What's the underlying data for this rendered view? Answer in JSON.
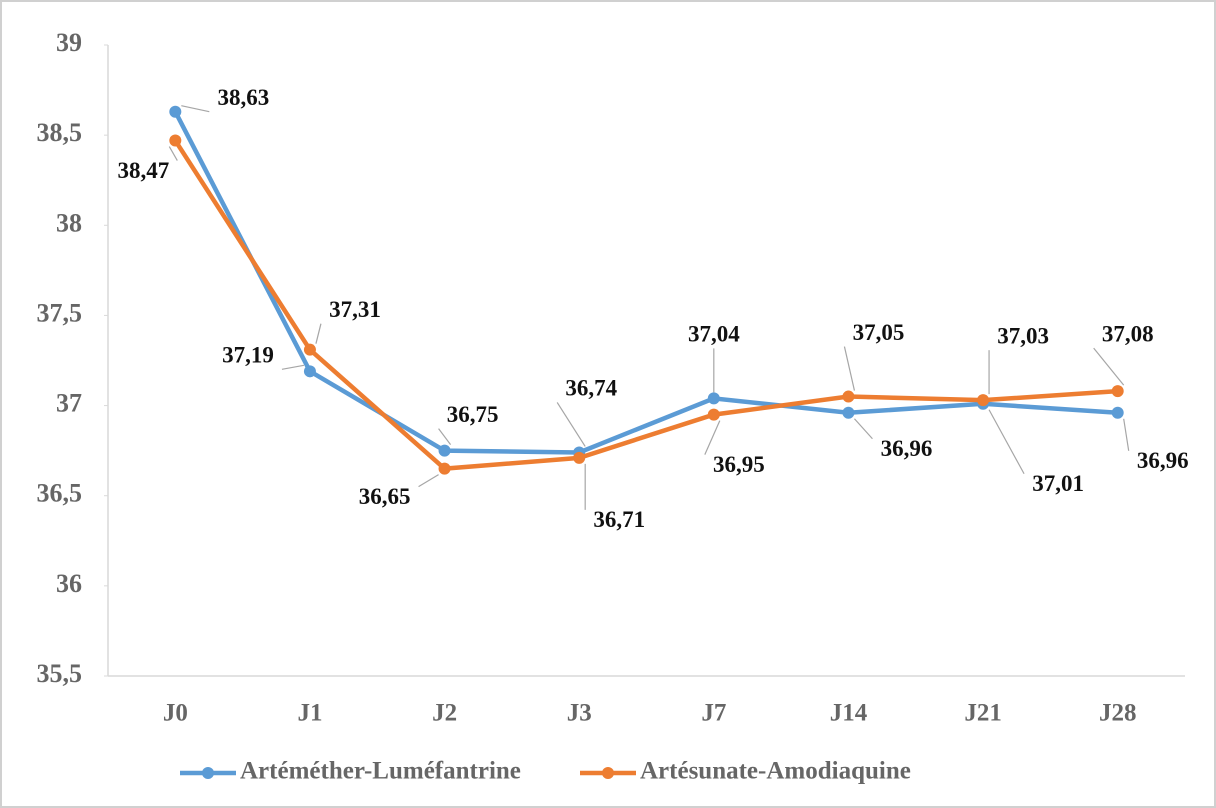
{
  "chart_data": {
    "type": "line",
    "categories": [
      "J0",
      "J1",
      "J2",
      "J3",
      "J7",
      "J14",
      "J21",
      "J28"
    ],
    "series": [
      {
        "name": "Artéméther-Luméfantrine",
        "color": "#5b9bd5",
        "values": [
          38.63,
          37.19,
          36.75,
          36.74,
          37.04,
          36.96,
          37.01,
          36.96
        ],
        "value_labels": [
          "38,63",
          "37,19",
          "36,75",
          "36,74",
          "37,04",
          "36,96",
          "37,01",
          "36,96"
        ]
      },
      {
        "name": "Artésunate-Amodiaquine",
        "color": "#ed7d31",
        "values": [
          38.47,
          37.31,
          36.65,
          36.71,
          36.95,
          37.05,
          37.03,
          37.08
        ],
        "value_labels": [
          "38,47",
          "37,31",
          "36,65",
          "36,71",
          "36,95",
          "37,05",
          "37,03",
          "37,08"
        ]
      }
    ],
    "ylim": [
      35.5,
      39
    ],
    "yticks": [
      {
        "value": 35.5,
        "label": "35,5"
      },
      36,
      {
        "value": 36.5,
        "label": "36,5"
      },
      37,
      {
        "value": 37.5,
        "label": "37,5"
      },
      38,
      {
        "value": 38.5,
        "label": "38,5"
      },
      39
    ],
    "legend": "bottom"
  }
}
